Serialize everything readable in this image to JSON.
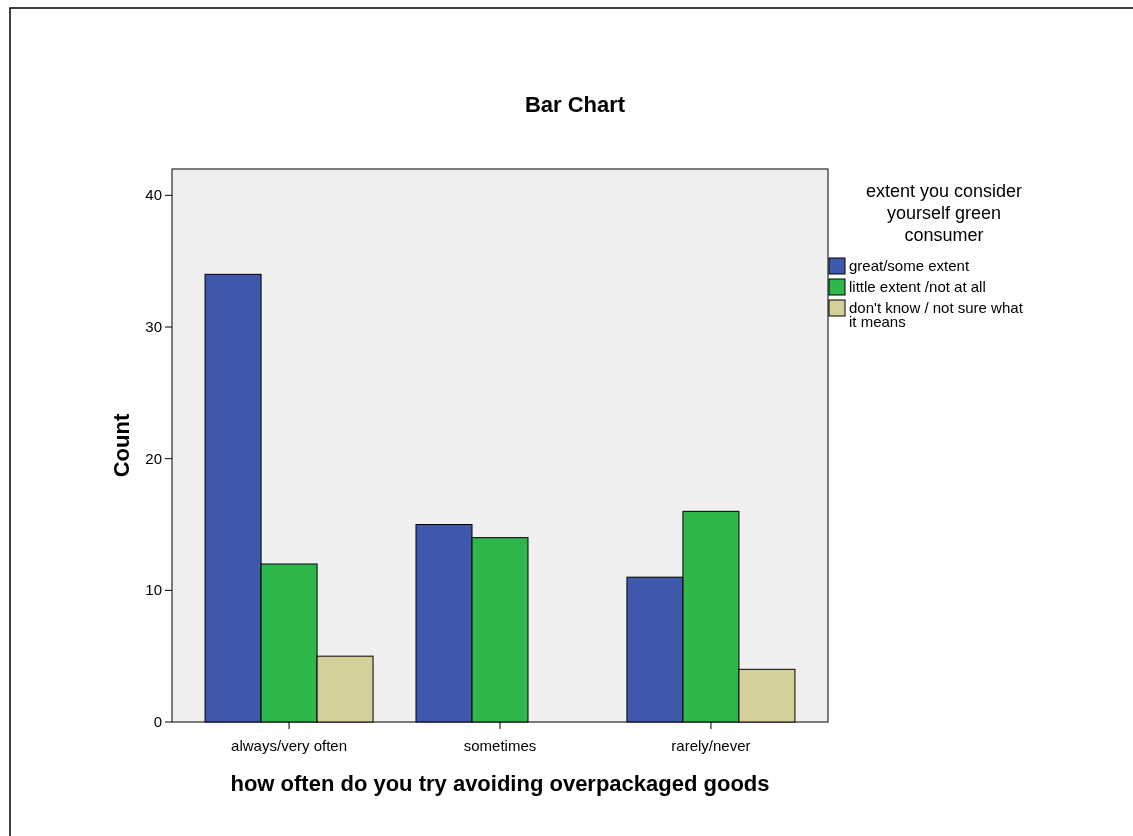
{
  "chart_data": {
    "type": "bar",
    "title": "Bar Chart",
    "xlabel": "how often do you try avoiding overpackaged goods",
    "ylabel": "Count",
    "legend_title": "extent you consider yourself green consumer",
    "categories": [
      "always/very often",
      "sometimes",
      "rarely/never"
    ],
    "series": [
      {
        "name": "great/some extent",
        "color": "#3e58ac",
        "values": [
          34,
          15,
          11
        ]
      },
      {
        "name": "little extent /not at all",
        "color": "#2eb84b",
        "values": [
          12,
          14,
          16
        ]
      },
      {
        "name": "don't know / not sure what it means",
        "color": "#d5cf9a",
        "values": [
          5,
          null,
          4
        ]
      }
    ],
    "ylim": [
      0,
      42
    ],
    "yticks": [
      0,
      10,
      20,
      30,
      40
    ],
    "grid": false,
    "legend": "right"
  }
}
